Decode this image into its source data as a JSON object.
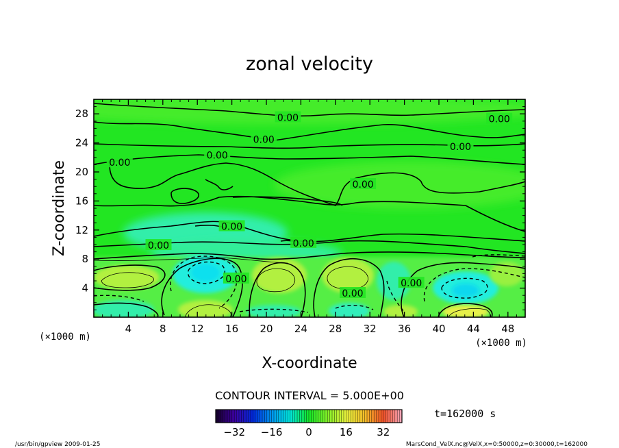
{
  "chart_data": {
    "type": "contour",
    "title": "zonal velocity",
    "xlabel": "X-coordinate",
    "ylabel": "Z-coordinate",
    "x_unit": "(×1000 m)",
    "y_unit": "(×1000 m)",
    "xlim": [
      0,
      50
    ],
    "ylim": [
      0,
      30
    ],
    "x_ticks": [
      "4",
      "8",
      "12",
      "16",
      "20",
      "24",
      "28",
      "32",
      "36",
      "40",
      "44",
      "48"
    ],
    "y_ticks": [
      "4",
      "8",
      "12",
      "16",
      "20",
      "24",
      "28"
    ],
    "contour_interval_label": "CONTOUR INTERVAL = 5.000E+00",
    "contour_labels": [
      {
        "text": "0.00",
        "x": 22.5,
        "y": 27.5
      },
      {
        "text": "0.00",
        "x": 47.0,
        "y": 27.3
      },
      {
        "text": "0.00",
        "x": 19.7,
        "y": 24.5
      },
      {
        "text": "0.00",
        "x": 42.5,
        "y": 23.5
      },
      {
        "text": "0.00",
        "x": 14.3,
        "y": 22.3
      },
      {
        "text": "0.00",
        "x": 3.0,
        "y": 21.3
      },
      {
        "text": "0.00",
        "x": 31.2,
        "y": 18.3
      },
      {
        "text": "0.00",
        "x": 16.0,
        "y": 12.5
      },
      {
        "text": "0.00",
        "x": 7.5,
        "y": 9.9
      },
      {
        "text": "0.00",
        "x": 24.3,
        "y": 10.2
      },
      {
        "text": "0.00",
        "x": 16.5,
        "y": 5.3
      },
      {
        "text": "0.00",
        "x": 30.0,
        "y": 3.3
      },
      {
        "text": "0.00",
        "x": 36.8,
        "y": 4.7
      }
    ],
    "colorbar": {
      "ticks": [
        "−32",
        "−16",
        "0",
        "16",
        "32"
      ],
      "range": [
        -40,
        40
      ]
    },
    "time_label": "t=162000 s",
    "footer_left": "/usr/bin/gpview  2009-01-25",
    "footer_right": "MarsCond_VelX.nc@VelX,x=0:50000,z=0:30000,t=162000",
    "colors": {
      "background_field": "#22e622",
      "light_green": "#66f033",
      "yellow_green": "#aaf033",
      "cyan_green": "#33eebb",
      "cyan": "#22eedd",
      "yellow": "#ddf044"
    }
  }
}
